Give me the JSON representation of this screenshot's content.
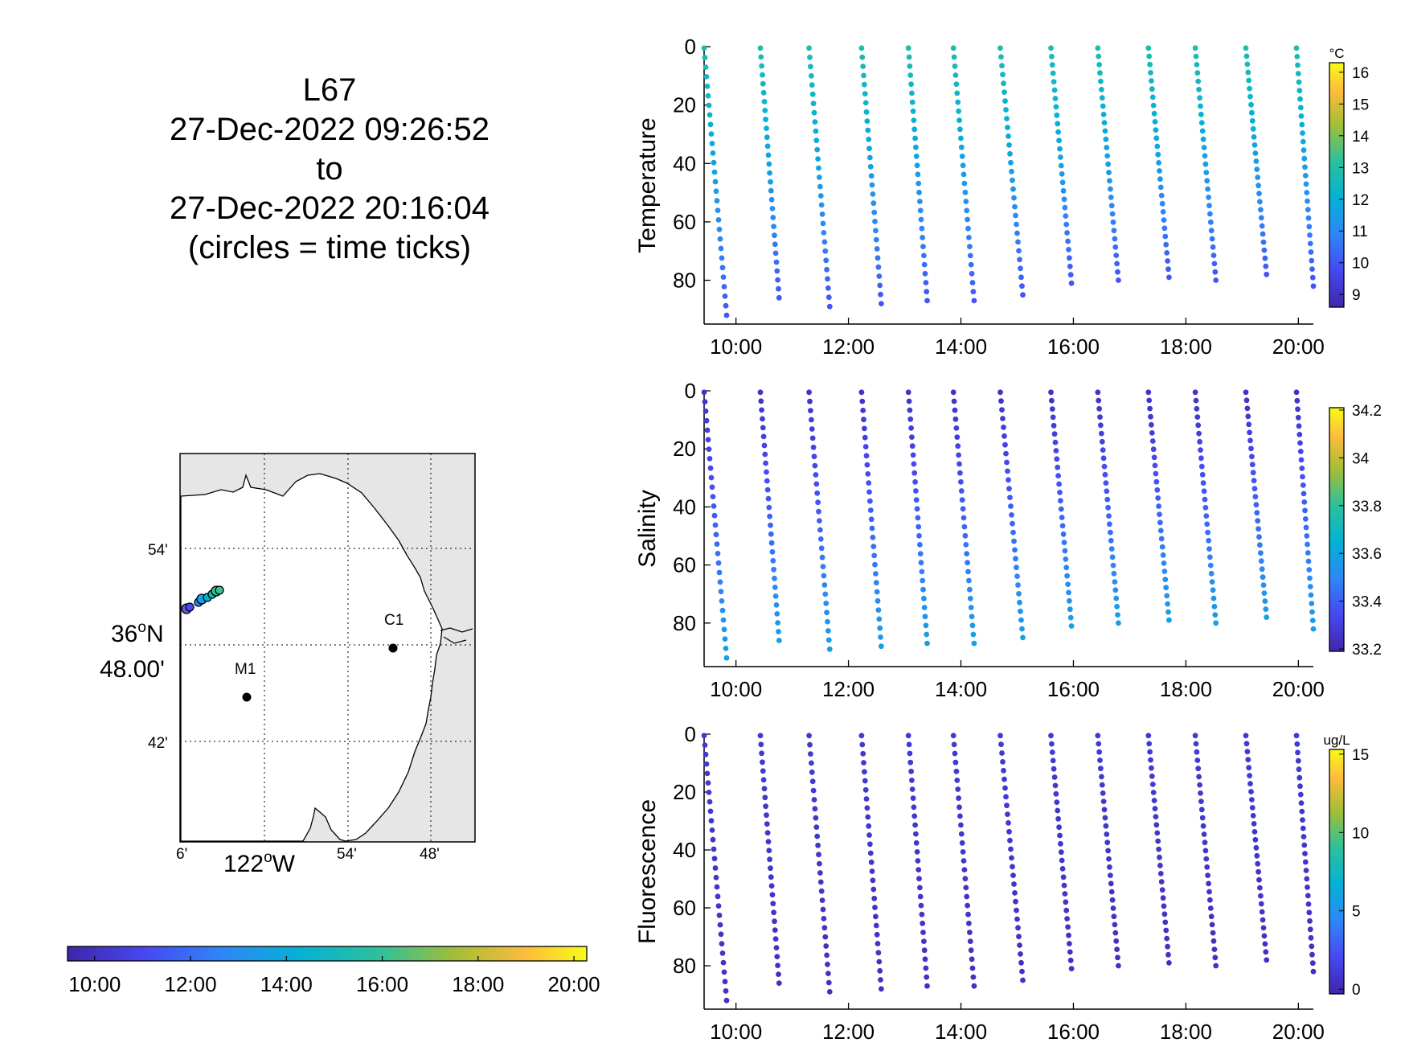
{
  "title_lines": [
    "L67",
    "27-Dec-2022 09:26:52",
    "to",
    "27-Dec-2022 20:16:04",
    "(circles = time ticks)"
  ],
  "chart_data": [
    {
      "type": "scatter",
      "panel": "temperature",
      "ylabel": "Temperature",
      "y_reversed": true,
      "ylim": [
        0,
        95
      ],
      "yticks": [
        "0",
        "20",
        "40",
        "60",
        "80"
      ],
      "xlim": [
        "09:26",
        "20:16"
      ],
      "xticks": [
        "10:00",
        "12:00",
        "14:00",
        "16:00",
        "18:00",
        "20:00"
      ],
      "colorbar": {
        "unit": "°C",
        "range": [
          8.6,
          16.3
        ],
        "ticks": [
          "9",
          "10",
          "11",
          "12",
          "13",
          "14",
          "15",
          "16"
        ],
        "colormap": "parula"
      },
      "dives": [
        {
          "start": "09:26",
          "end": "09:50",
          "max_depth": 92
        },
        {
          "start": "10:26",
          "end": "10:46",
          "max_depth": 86
        },
        {
          "start": "11:18",
          "end": "11:40",
          "max_depth": 89
        },
        {
          "start": "12:14",
          "end": "12:35",
          "max_depth": 88
        },
        {
          "start": "13:04",
          "end": "13:24",
          "max_depth": 87
        },
        {
          "start": "13:52",
          "end": "14:14",
          "max_depth": 87
        },
        {
          "start": "14:42",
          "end": "15:06",
          "max_depth": 85
        },
        {
          "start": "15:36",
          "end": "15:58",
          "max_depth": 81
        },
        {
          "start": "16:26",
          "end": "16:48",
          "max_depth": 80
        },
        {
          "start": "17:20",
          "end": "17:42",
          "max_depth": 79
        },
        {
          "start": "18:10",
          "end": "18:32",
          "max_depth": 80
        },
        {
          "start": "19:04",
          "end": "19:26",
          "max_depth": 78
        },
        {
          "start": "19:58",
          "end": "20:16",
          "max_depth": 82
        }
      ],
      "value_profile": {
        "surface": 12.8,
        "bottom": 10.0
      }
    },
    {
      "type": "scatter",
      "panel": "salinity",
      "ylabel": "Salinity",
      "y_reversed": true,
      "ylim": [
        0,
        95
      ],
      "yticks": [
        "0",
        "20",
        "40",
        "60",
        "80"
      ],
      "xticks": [
        "10:00",
        "12:00",
        "14:00",
        "16:00",
        "18:00",
        "20:00"
      ],
      "colorbar": {
        "unit": "",
        "range": [
          33.19,
          34.21
        ],
        "ticks": [
          "33.2",
          "33.4",
          "33.6",
          "33.8",
          "34",
          "34.2"
        ],
        "colormap": "parula"
      },
      "value_profile": {
        "surface": 33.25,
        "bottom": 33.58
      }
    },
    {
      "type": "scatter",
      "panel": "fluorescence",
      "ylabel": "Fluorescence",
      "y_reversed": true,
      "ylim": [
        0,
        95
      ],
      "yticks": [
        "0",
        "20",
        "40",
        "60",
        "80"
      ],
      "xticks": [
        "10:00",
        "12:00",
        "14:00",
        "16:00",
        "18:00",
        "20:00"
      ],
      "colorbar": {
        "unit": "ug/L",
        "range": [
          -0.3,
          15.3
        ],
        "ticks": [
          "0",
          "5",
          "10",
          "15"
        ],
        "colormap": "parula"
      },
      "value_profile": {
        "surface": 1.0,
        "bottom": 0.5
      }
    },
    {
      "type": "map",
      "lat_ticks": [
        "54'",
        "36°N 48.00'",
        "42'"
      ],
      "lon_ticks": [
        "6'",
        "122°W",
        "54'",
        "48'"
      ],
      "stations": [
        {
          "name": "M1"
        },
        {
          "name": "C1"
        }
      ],
      "grid": true
    }
  ],
  "map": {
    "lat_top": "54'",
    "lat_mid_1": "36",
    "lat_mid_sup": "o",
    "lat_mid_2": "N",
    "lat_mid_3": "48.00'",
    "lat_bottom": "42'",
    "lon_1": "6'",
    "lon_2a": "122",
    "lon_2sup": "o",
    "lon_2b": "W",
    "lon_3": "54'",
    "lon_4": "48'",
    "station_m1": "M1",
    "station_c1": "C1"
  },
  "time_colorbar": {
    "ticks": [
      "10:00",
      "12:00",
      "14:00",
      "16:00",
      "18:00",
      "20:00"
    ],
    "colormap": "parula"
  },
  "colors": {
    "land": "#e6e6e6",
    "ocean": "#ffffff",
    "axis": "#000000"
  }
}
